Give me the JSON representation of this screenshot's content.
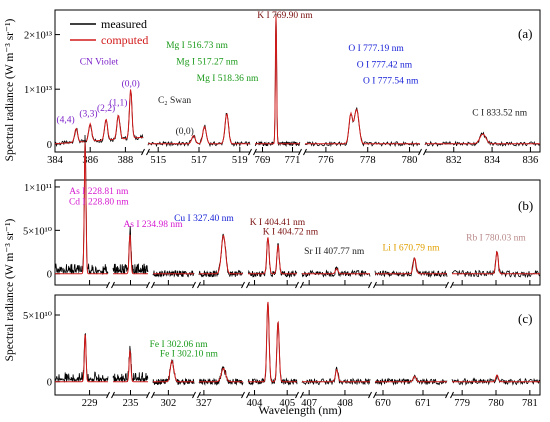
{
  "figure": {
    "xlabel": "Wavelength (nm)",
    "ylabel_top": "Spectral radiance (W m⁻³ sr⁻¹)",
    "ylabel_bottom": "Spectral radiance (W m⁻³ sr⁻¹)"
  },
  "colors": {
    "measured": "#000000",
    "computed": "#d11a1a",
    "cn": "#7a1fc8",
    "green": "#1a9a1a",
    "blue": "#1a23d6",
    "magenta": "#d61ad1",
    "orange": "#e0a000",
    "rb": "#b98a8a",
    "dark": "#222222",
    "maroon": "#7a1010"
  },
  "chart_data": [
    {
      "type": "line",
      "panel_label": "(a)",
      "ytick_labels": [
        "0",
        "1×10¹³",
        "2×10¹³"
      ],
      "ytick_values": [
        0,
        10000000000000.0,
        20000000000000.0
      ],
      "ylim": [
        -1500000000000.0,
        24500000000000.0
      ],
      "ylabel": "Spectral radiance (W m⁻³ sr⁻¹)",
      "legend": [
        "measured",
        "computed"
      ],
      "legend_position": "top-left",
      "segments": [
        {
          "xlim": [
            384,
            389
          ],
          "xticks": [
            384,
            386,
            388
          ]
        },
        {
          "xlim": [
            514.5,
            519.5
          ],
          "xticks": [
            515,
            517,
            519
          ]
        },
        {
          "xlim": [
            768.5,
            771.5
          ],
          "xticks": [
            769,
            771
          ]
        },
        {
          "xlim": [
            775,
            780.5
          ],
          "xticks": [
            776,
            778,
            780
          ]
        },
        {
          "xlim": [
            830.5,
            836.5
          ],
          "xticks": [
            832,
            834,
            836
          ]
        }
      ],
      "peaks": [
        {
          "x": 385.2,
          "y": 2500000000000.0,
          "w": 0.12
        },
        {
          "x": 386.0,
          "y": 3200000000000.0,
          "w": 0.12
        },
        {
          "x": 386.9,
          "y": 3800000000000.0,
          "w": 0.12
        },
        {
          "x": 387.6,
          "y": 4400000000000.0,
          "w": 0.12
        },
        {
          "x": 388.3,
          "y": 9000000000000.0,
          "w": 0.1
        },
        {
          "x": 516.73,
          "y": 1500000000000.0,
          "w": 0.12
        },
        {
          "x": 517.27,
          "y": 3200000000000.0,
          "w": 0.12
        },
        {
          "x": 518.36,
          "y": 5500000000000.0,
          "w": 0.12
        },
        {
          "x": 769.9,
          "y": 23500000000000.0,
          "w": 0.06
        },
        {
          "x": 777.19,
          "y": 5500000000000.0,
          "w": 0.12
        },
        {
          "x": 777.42,
          "y": 4500000000000.0,
          "w": 0.12
        },
        {
          "x": 777.54,
          "y": 3500000000000.0,
          "w": 0.12
        },
        {
          "x": 833.52,
          "y": 1800000000000.0,
          "w": 0.22
        }
      ],
      "annotations": [
        {
          "text": "CN Violet",
          "x": 386.5,
          "y": 14500000000000.0,
          "color": "cn"
        },
        {
          "text": "(4,4)",
          "x": 384.6,
          "y": 3900000000000.0,
          "color": "cn"
        },
        {
          "text": "(3,3)",
          "x": 385.9,
          "y": 5000000000000.0,
          "color": "cn"
        },
        {
          "text": "(2,2)",
          "x": 386.9,
          "y": 6000000000000.0,
          "color": "cn"
        },
        {
          "text": "(1,1)",
          "x": 387.6,
          "y": 7000000000000.0,
          "color": "cn"
        },
        {
          "text": "(0,0)",
          "x": 388.3,
          "y": 10500000000000.0,
          "color": "cn"
        },
        {
          "text": "C₂ Swan",
          "x": 515.8,
          "y": 7500000000000.0,
          "color": "dark"
        },
        {
          "text": "(0,0)",
          "x": 516.3,
          "y": 1800000000000.0,
          "color": "dark"
        },
        {
          "text": "Mg I 516.73 nm",
          "x": 516.9,
          "y": 17500000000000.0,
          "color": "green"
        },
        {
          "text": "Mg I 517.27 nm",
          "x": 517.4,
          "y": 14500000000000.0,
          "color": "green"
        },
        {
          "text": "Mg I 518.36 nm",
          "x": 518.4,
          "y": 11500000000000.0,
          "color": "green"
        },
        {
          "text": "K I 769.90 nm",
          "x": 770.5,
          "y": 23000000000000.0,
          "color": "maroon"
        },
        {
          "text": "O I 777.19 nm",
          "x": 778.4,
          "y": 17000000000000.0,
          "color": "blue"
        },
        {
          "text": "O I 777.42 nm",
          "x": 778.8,
          "y": 14000000000000.0,
          "color": "blue"
        },
        {
          "text": "O I 777.54 nm",
          "x": 779.1,
          "y": 11000000000000.0,
          "color": "blue"
        },
        {
          "text": "C I 833.52 nm",
          "x": 834.4,
          "y": 5200000000000.0,
          "color": "dark"
        }
      ]
    },
    {
      "type": "line",
      "panel_label": "(b)",
      "ytick_labels": [
        "0",
        "5×10¹⁰",
        "1×10¹¹"
      ],
      "ytick_values": [
        0,
        50000000000.0,
        100000000000.0
      ],
      "ylim": [
        -13000000000.0,
        108000000000.0
      ],
      "ylabel": "Spectral radiance (W m⁻³ sr⁻¹)",
      "peaks": [
        {
          "x": 228.81,
          "y": 98000000000.0,
          "w": 0.05
        },
        {
          "x": 228.8,
          "y": 55000000000.0,
          "w": 0.05
        },
        {
          "x": 234.98,
          "y": 45000000000.0,
          "w": 0.05
        },
        {
          "x": 327.4,
          "y": 44000000000.0,
          "w": 0.06
        },
        {
          "x": 404.41,
          "y": 42000000000.0,
          "w": 0.05
        },
        {
          "x": 404.72,
          "y": 33000000000.0,
          "w": 0.05
        },
        {
          "x": 407.77,
          "y": 6000000000.0,
          "w": 0.05
        },
        {
          "x": 670.79,
          "y": 18000000000.0,
          "w": 0.05
        },
        {
          "x": 780.03,
          "y": 26000000000.0,
          "w": 0.05
        }
      ],
      "annotations": [
        {
          "text": "As I 228.81 nm",
          "x": 229.4,
          "y": 92000000000.0,
          "color": "magenta"
        },
        {
          "text": "Cd I 228.80 nm",
          "x": 229.4,
          "y": 80000000000.0,
          "color": "magenta"
        },
        {
          "text": "As I 234.98 nm",
          "x": 235.9,
          "y": 54000000000.0,
          "color": "magenta"
        },
        {
          "text": "Cu I 327.40 nm",
          "x": 327.0,
          "y": 61000000000.0,
          "color": "blue"
        },
        {
          "text": "K I 404.41 nm",
          "x": 404.7,
          "y": 56000000000.0,
          "color": "maroon"
        },
        {
          "text": "K I 404.72 nm",
          "x": 405.1,
          "y": 45000000000.0,
          "color": "maroon"
        },
        {
          "text": "Sr II 407.77 nm",
          "x": 407.7,
          "y": 23000000000.0,
          "color": "dark"
        },
        {
          "text": "Li I 670.79 nm",
          "x": 670.7,
          "y": 27000000000.0,
          "color": "orange"
        },
        {
          "text": "Rb I 780.03 nm",
          "x": 780.0,
          "y": 38000000000.0,
          "color": "rb"
        }
      ]
    },
    {
      "type": "line",
      "panel_label": "(c)",
      "ytick_labels": [
        "0",
        "5×10¹⁰"
      ],
      "ytick_values": [
        0,
        50000000000.0
      ],
      "ylim": [
        -10000000000.0,
        65000000000.0
      ],
      "ylabel": "Spectral radiance (W m⁻³ sr⁻¹)",
      "xlabel": "Wavelength (nm)",
      "segments": [
        {
          "xlim": [
            227.5,
            229.8
          ],
          "xticks": [
            229
          ]
        },
        {
          "xlim": [
            234.3,
            235.7
          ],
          "xticks": [
            235
          ]
        },
        {
          "xlim": [
            301.7,
            302.5
          ],
          "xticks": [
            302
          ]
        },
        {
          "xlim": [
            326.9,
            327.8
          ],
          "xticks": [
            327
          ]
        },
        {
          "xlim": [
            403.8,
            405.3
          ],
          "xticks": [
            404,
            405
          ]
        },
        {
          "xlim": [
            406.8,
            408.7
          ],
          "xticks": [
            407,
            408
          ]
        },
        {
          "xlim": [
            669.8,
            671.6
          ],
          "xticks": [
            670,
            671
          ]
        },
        {
          "xlim": [
            778.7,
            781.3
          ],
          "xticks": [
            779,
            780,
            781
          ]
        }
      ],
      "peaks": [
        {
          "x": 228.81,
          "y": 36000000000.0,
          "w": 0.05
        },
        {
          "x": 234.98,
          "y": 23000000000.0,
          "w": 0.05
        },
        {
          "x": 302.06,
          "y": 13000000000.0,
          "w": 0.04
        },
        {
          "x": 302.1,
          "y": 6000000000.0,
          "w": 0.04
        },
        {
          "x": 327.4,
          "y": 10000000000.0,
          "w": 0.06
        },
        {
          "x": 404.41,
          "y": 60000000000.0,
          "w": 0.05
        },
        {
          "x": 404.72,
          "y": 45000000000.0,
          "w": 0.05
        },
        {
          "x": 407.77,
          "y": 9000000000.0,
          "w": 0.05
        },
        {
          "x": 670.79,
          "y": 4000000000.0,
          "w": 0.05
        },
        {
          "x": 780.03,
          "y": 5000000000.0,
          "w": 0.05
        }
      ],
      "annotations": [
        {
          "text": "Fe I 302.06 nm",
          "x": 302.2,
          "y": 26000000000.0,
          "color": "green"
        },
        {
          "text": "Fe I 302.10 nm",
          "x": 302.4,
          "y": 19000000000.0,
          "color": "green"
        }
      ]
    }
  ]
}
